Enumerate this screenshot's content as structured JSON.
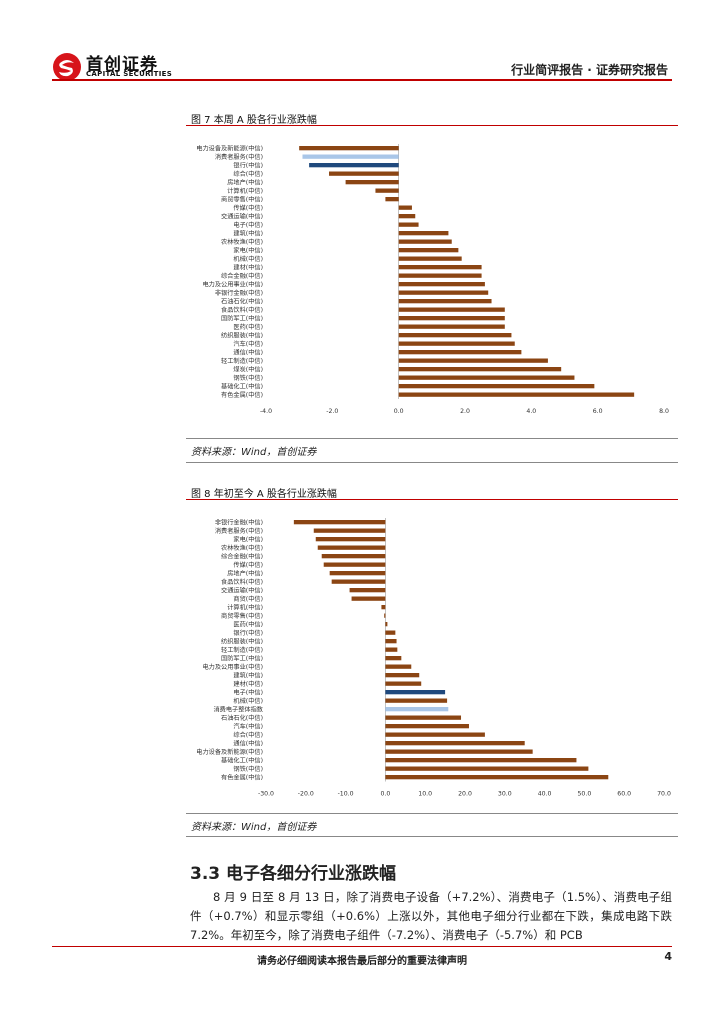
{
  "header": {
    "company_cn": "首创证券",
    "company_en": "CAPITAL SECURITIES",
    "report_type": "行业简评报告 · 证券研究报告"
  },
  "figure7": {
    "title": "图 7 本周 A 股各行业涨跌幅",
    "source": "资料来源：Wind，首创证券"
  },
  "figure8": {
    "title": "图 8 年初至今 A 股各行业涨跌幅",
    "source": "资料来源：Wind，首创证券"
  },
  "chart_data": [
    {
      "type": "bar",
      "orientation": "horizontal",
      "categories": [
        "电力设备及新能源(中信)",
        "消费者服务(中信)",
        "银行(中信)",
        "综合(中信)",
        "房地产(中信)",
        "计算机(中信)",
        "商贸零售(中信)",
        "传媒(中信)",
        "交通运输(中信)",
        "电子(中信)",
        "建筑(中信)",
        "农林牧渔(中信)",
        "家电(中信)",
        "机械(中信)",
        "建材(中信)",
        "综合金融(中信)",
        "电力及公用事业(中信)",
        "非银行金融(中信)",
        "石油石化(中信)",
        "食品饮料(中信)",
        "国防军工(中信)",
        "医药(中信)",
        "纺织服装(中信)",
        "汽车(中信)",
        "通信(中信)",
        "轻工制造(中信)",
        "煤炭(中信)",
        "钢铁(中信)",
        "基础化工(中信)",
        "有色金属(中信)"
      ],
      "values": [
        -3.0,
        -2.9,
        -2.7,
        -2.1,
        -1.6,
        -0.7,
        -0.4,
        0.4,
        0.5,
        0.6,
        1.5,
        1.6,
        1.8,
        1.9,
        2.5,
        2.5,
        2.6,
        2.7,
        2.8,
        3.2,
        3.2,
        3.2,
        3.4,
        3.5,
        3.7,
        4.5,
        4.9,
        5.3,
        5.9,
        7.1
      ],
      "colors": [
        "#8B4513",
        "#a9c6e8",
        "#1f497d",
        "#8B4513",
        "#8B4513",
        "#8B4513",
        "#8B4513",
        "#8B4513",
        "#8B4513",
        "#8B4513",
        "#8B4513",
        "#8B4513",
        "#8B4513",
        "#8B4513",
        "#8B4513",
        "#8B4513",
        "#8B4513",
        "#8B4513",
        "#8B4513",
        "#8B4513",
        "#8B4513",
        "#8B4513",
        "#8B4513",
        "#8B4513",
        "#8B4513",
        "#8B4513",
        "#8B4513",
        "#8B4513",
        "#8B4513",
        "#8B4513"
      ],
      "xlim": [
        -4,
        8
      ],
      "ticks": [
        -4,
        -2,
        0,
        2,
        4,
        6,
        8
      ],
      "tick_labels": [
        "-4.0",
        "-2.0",
        "0.0",
        "2.0",
        "4.0",
        "6.0",
        "8.0"
      ]
    },
    {
      "type": "bar",
      "orientation": "horizontal",
      "categories": [
        "非银行金融(中信)",
        "消费者服务(中信)",
        "家电(中信)",
        "农林牧渔(中信)",
        "综合金融(中信)",
        "传媒(中信)",
        "房地产(中信)",
        "食品饮料(中信)",
        "交通运输(中信)",
        "商贸(中信)",
        "计算机(中信)",
        "商贸零售(中信)",
        "医药(中信)",
        "银行(中信)",
        "纺织服装(中信)",
        "轻工制造(中信)",
        "国防军工(中信)",
        "电力及公用事业(中信)",
        "建筑(中信)",
        "建材(中信)",
        "电子(中信)",
        "机械(中信)",
        "消费电子整体指数",
        "石油石化(中信)",
        "汽车(中信)",
        "综合(中信)",
        "通信(中信)",
        "电力设备及新能源(中信)",
        "基础化工(中信)",
        "钢铁(中信)",
        "有色金属(中信)"
      ],
      "values": [
        -23.0,
        -18.0,
        -17.5,
        -17.0,
        -16.0,
        -15.5,
        -14.0,
        -13.5,
        -9.0,
        -8.5,
        -1.0,
        -0.3,
        0.5,
        2.5,
        2.8,
        3.0,
        4.0,
        6.5,
        8.5,
        9.0,
        15.0,
        15.5,
        15.8,
        19.0,
        21.0,
        25.0,
        35.0,
        37.0,
        48.0,
        51.0,
        56.0
      ],
      "colors": [
        "#8B4513",
        "#8B4513",
        "#8B4513",
        "#8B4513",
        "#8B4513",
        "#8B4513",
        "#8B4513",
        "#8B4513",
        "#8B4513",
        "#8B4513",
        "#8B4513",
        "#8B4513",
        "#8B4513",
        "#8B4513",
        "#8B4513",
        "#8B4513",
        "#8B4513",
        "#8B4513",
        "#8B4513",
        "#8B4513",
        "#1f497d",
        "#8B4513",
        "#a9c6e8",
        "#8B4513",
        "#8B4513",
        "#8B4513",
        "#8B4513",
        "#8B4513",
        "#8B4513",
        "#8B4513",
        "#8B4513"
      ],
      "xlim": [
        -30,
        70
      ],
      "ticks": [
        -30,
        -20,
        -10,
        0,
        10,
        20,
        30,
        40,
        50,
        60,
        70
      ],
      "tick_labels": [
        "-30.0",
        "-20.0",
        "-10.0",
        "0.0",
        "10.0",
        "20.0",
        "30.0",
        "40.0",
        "50.0",
        "60.0",
        "70.0"
      ]
    }
  ],
  "section": {
    "title": "3.3 电子各细分行业涨跌幅",
    "paragraph": "8 月 9 日至 8 月 13 日，除了消费电子设备（+7.2%）、消费电子（1.5%）、消费电子组件（+0.7%）和显示零组（+0.6%）上涨以外，其他电子细分行业都在下跌，集成电路下跌 7.2%。年初至今，除了消费电子组件（-7.2%）、消费电子（-5.7%）和 PCB"
  },
  "footer": {
    "disclaimer": "请务必仔细阅读本报告最后部分的重要法律声明",
    "page": "4"
  }
}
